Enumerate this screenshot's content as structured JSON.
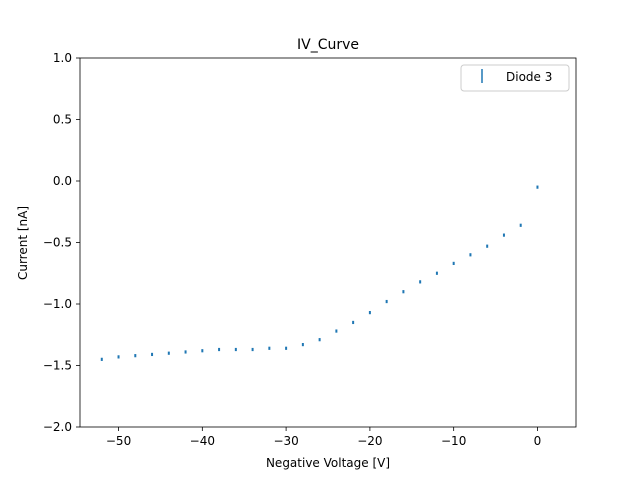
{
  "chart_data": {
    "type": "scatter",
    "title": "IV_Curve",
    "xlabel": "Negative Voltage [V]",
    "ylabel": "Current [nA]",
    "xlim": [
      -54.6,
      4.6
    ],
    "ylim": [
      -2.0,
      1.0
    ],
    "xticks": [
      -50,
      -40,
      -30,
      -20,
      -10,
      0
    ],
    "xtick_labels": [
      "−50",
      "−40",
      "−30",
      "−20",
      "−10",
      "0"
    ],
    "yticks": [
      1.0,
      0.5,
      0.0,
      -0.5,
      -1.0,
      -1.5,
      -2.0
    ],
    "ytick_labels": [
      "1.0",
      "0.5",
      "0.0",
      "−0.5",
      "−1.0",
      "−1.5",
      "−2.0"
    ],
    "grid": false,
    "legend_position": "top-right",
    "series": [
      {
        "name": "Diode 3",
        "color": "#1f77b4",
        "marker": "errorbar",
        "x": [
          0,
          -2,
          -4,
          -6,
          -8,
          -10,
          -12,
          -14,
          -16,
          -18,
          -20,
          -22,
          -24,
          -26,
          -28,
          -30,
          -32,
          -34,
          -36,
          -38,
          -40,
          -42,
          -44,
          -46,
          -48,
          -50,
          -52
        ],
        "y": [
          -0.05,
          -0.36,
          -0.44,
          -0.53,
          -0.6,
          -0.67,
          -0.75,
          -0.82,
          -0.9,
          -0.98,
          -1.07,
          -1.15,
          -1.22,
          -1.29,
          -1.33,
          -1.36,
          -1.36,
          -1.37,
          -1.37,
          -1.37,
          -1.38,
          -1.39,
          -1.4,
          -1.41,
          -1.42,
          -1.43,
          -1.45
        ]
      }
    ]
  }
}
